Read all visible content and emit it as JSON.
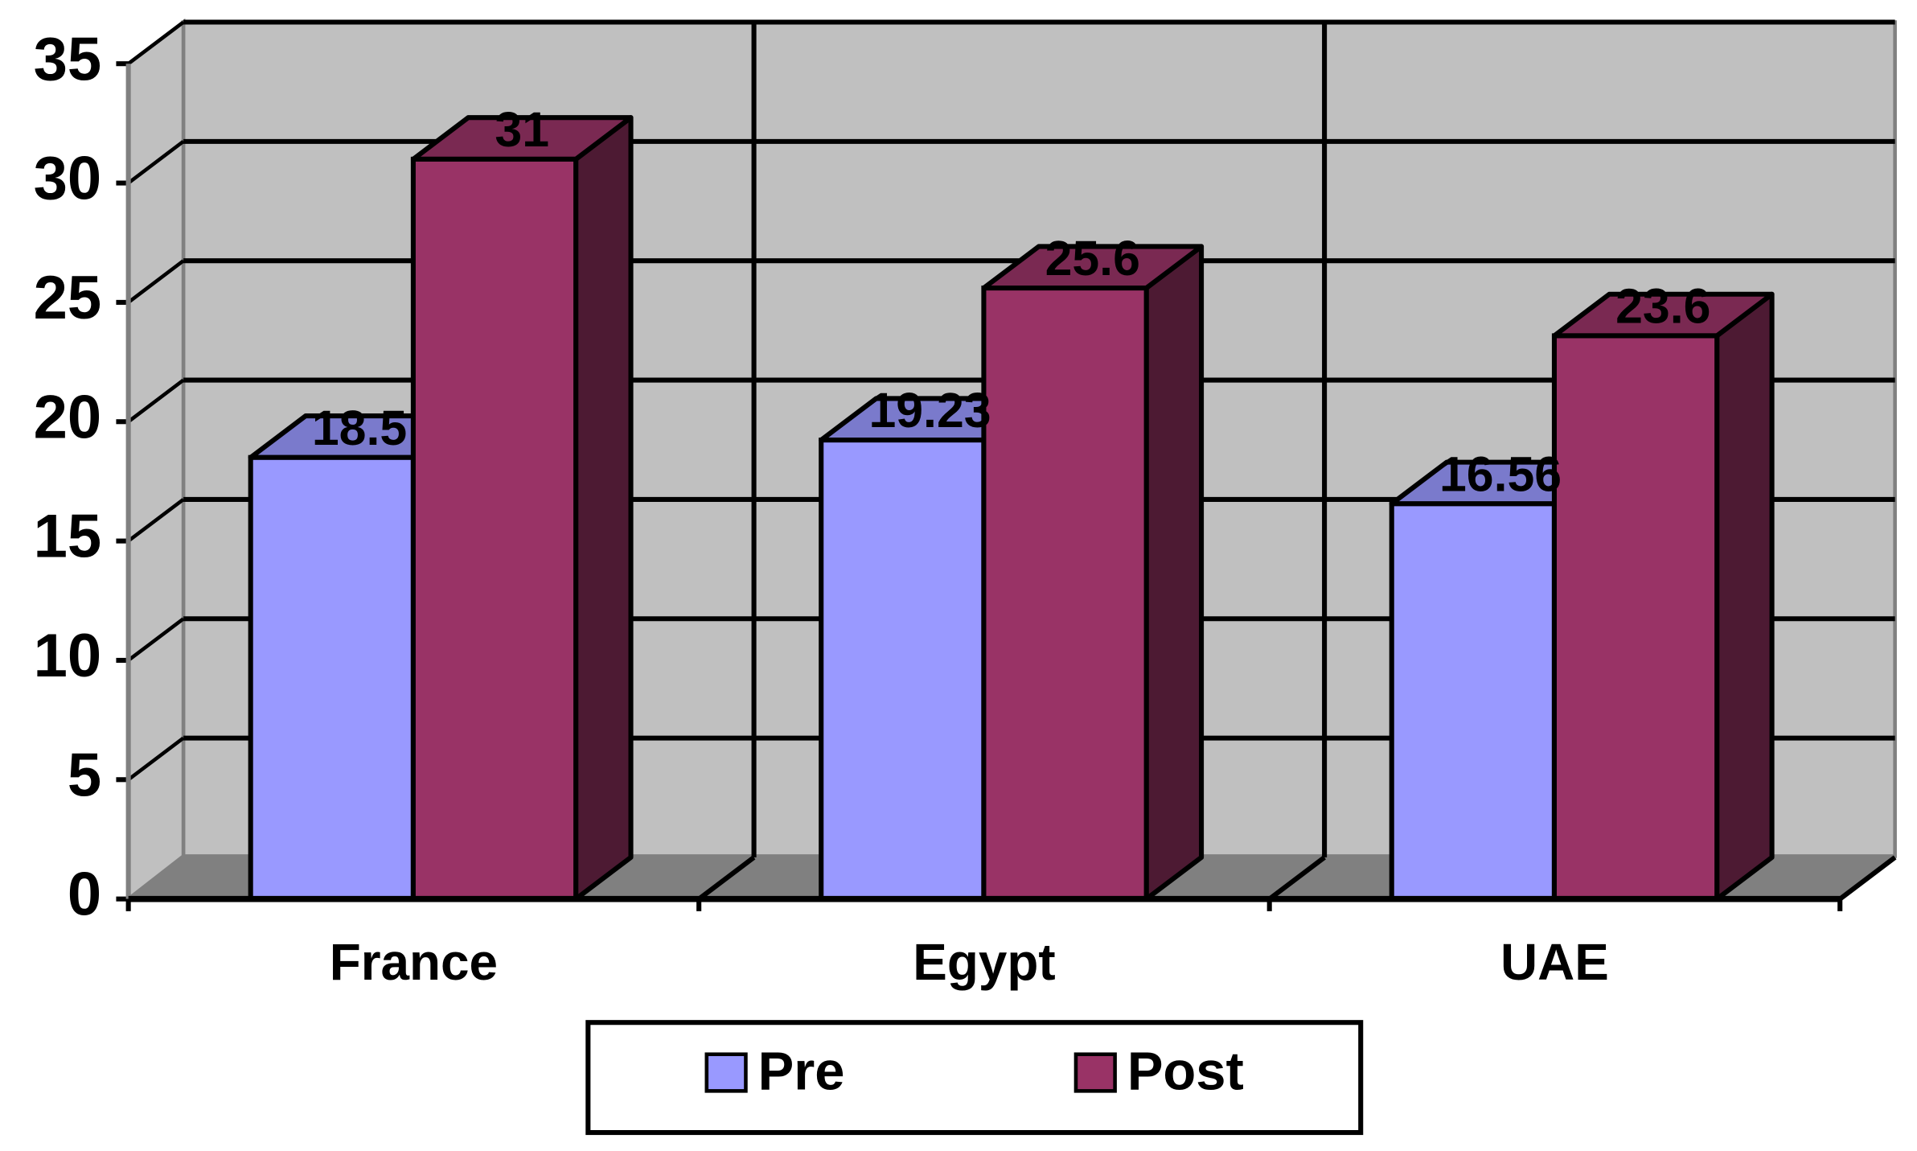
{
  "chart_data": {
    "type": "bar3d",
    "categories": [
      "France",
      "Egypt",
      "UAE"
    ],
    "series": [
      {
        "name": "Pre",
        "color": "#9999ff",
        "values": [
          18.5,
          19.23,
          16.56
        ]
      },
      {
        "name": "Post",
        "color": "#993366",
        "values": [
          31,
          25.6,
          23.6
        ]
      }
    ],
    "ylim": [
      0,
      35
    ],
    "yticks": [
      0,
      5,
      10,
      15,
      20,
      25,
      30,
      35
    ],
    "grid": true,
    "legend": "bottom"
  }
}
